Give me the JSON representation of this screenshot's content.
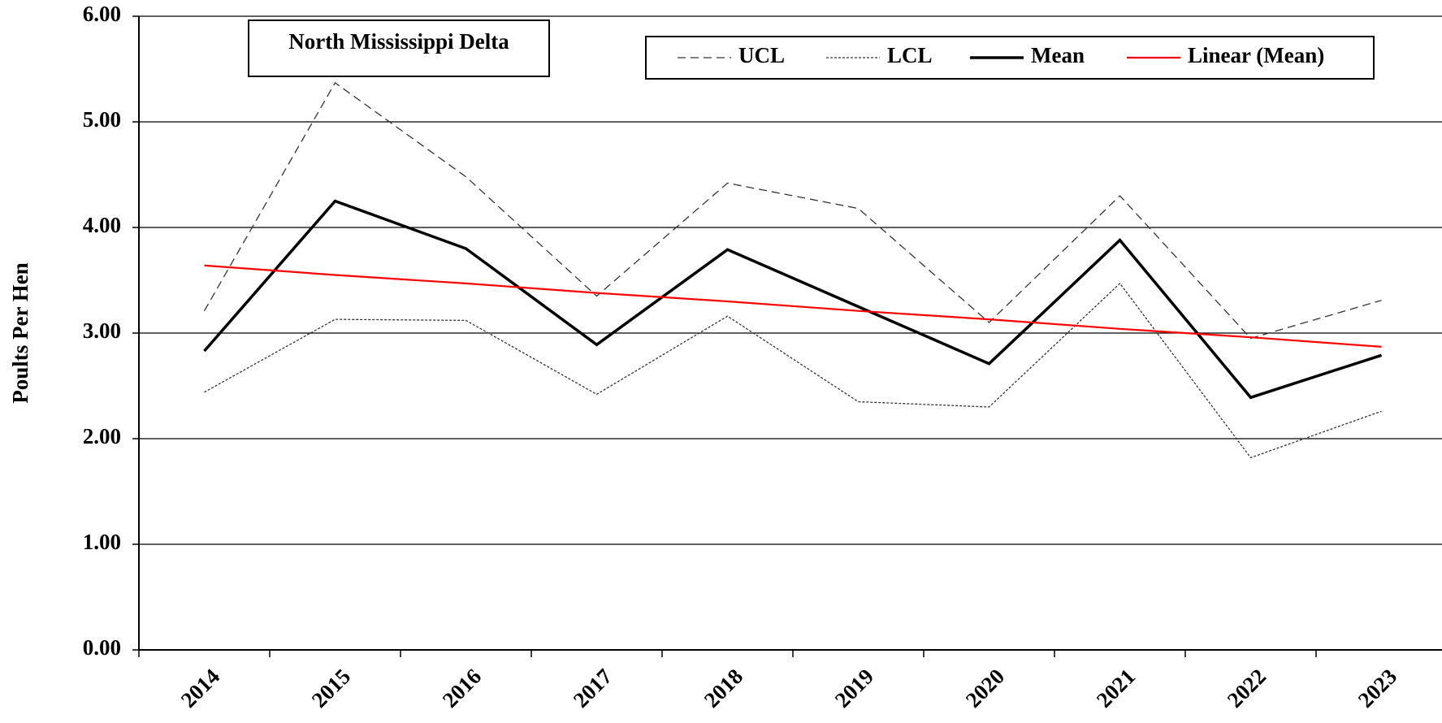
{
  "chart_data": {
    "type": "line",
    "title": "North Mississippi Delta",
    "y_label": "Poults Per Hen",
    "categories": [
      "2014",
      "2015",
      "2016",
      "2017",
      "2018",
      "2019",
      "2020",
      "2021",
      "2022",
      "2023"
    ],
    "series": [
      {
        "name": "UCL",
        "color": "#333333",
        "style": "dashed",
        "values": [
          3.21,
          5.37,
          4.48,
          3.35,
          4.42,
          4.18,
          3.1,
          4.3,
          2.95,
          3.31
        ]
      },
      {
        "name": "LCL",
        "color": "#333333",
        "style": "dotted",
        "values": [
          2.44,
          3.13,
          3.12,
          2.42,
          3.16,
          2.35,
          2.3,
          3.47,
          1.82,
          2.26
        ]
      },
      {
        "name": "Mean",
        "color": "#000000",
        "style": "bold",
        "values": [
          2.83,
          4.25,
          3.8,
          2.89,
          3.79,
          3.25,
          2.71,
          3.88,
          2.39,
          2.79
        ]
      },
      {
        "name": "Linear (Mean)",
        "color": "#ff0000",
        "style": "solid",
        "values": [
          3.64,
          3.55,
          3.47,
          3.38,
          3.3,
          3.21,
          3.13,
          3.04,
          2.96,
          2.87
        ]
      }
    ],
    "ylim": [
      0,
      6
    ],
    "yticks": [
      {
        "value": 0,
        "label": "0.00"
      },
      {
        "value": 1,
        "label": "1.00"
      },
      {
        "value": 2,
        "label": "2.00"
      },
      {
        "value": 3,
        "label": "3.00"
      },
      {
        "value": 4,
        "label": "4.00"
      },
      {
        "value": 5,
        "label": "5.00"
      },
      {
        "value": 6,
        "label": "6.00"
      }
    ],
    "grid": true
  }
}
